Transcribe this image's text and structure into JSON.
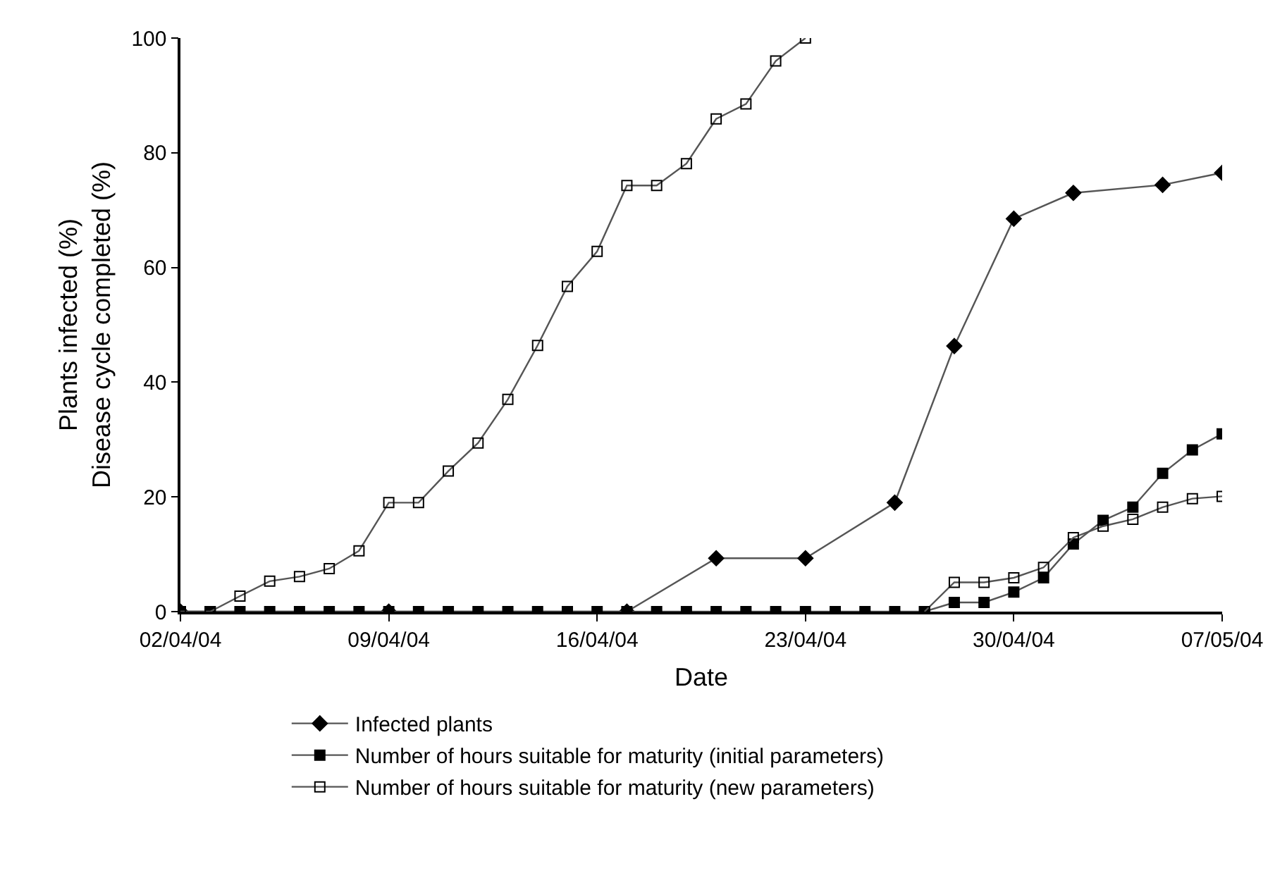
{
  "chart_data": {
    "type": "line",
    "xlabel": "Date",
    "ylabel": "Plants infected (%)\nDisease cycle completed (%)",
    "xlim": [
      "--04-02",
      "--05-07"
    ],
    "xticks": [
      {
        "value": "--04-02",
        "label": "02/04/04"
      },
      {
        "value": "--04-09",
        "label": "09/04/04"
      },
      {
        "value": "--04-16",
        "label": "16/04/04"
      },
      {
        "value": "--04-23",
        "label": "23/04/04"
      },
      {
        "value": "--04-30",
        "label": "30/04/04"
      },
      {
        "value": "--05-07",
        "label": "07/05/04"
      }
    ],
    "ylim": [
      0,
      100
    ],
    "yticks": [
      0,
      20,
      40,
      60,
      80,
      100
    ],
    "grid": false,
    "legend": "bottom",
    "line_style": "solid",
    "series": [
      {
        "name": "Infected plants",
        "color": "#000000",
        "marker": "diamond",
        "x": [
          "--04-02",
          "--04-09",
          "--04-17",
          "--04-20",
          "--04-23",
          "--04-26",
          "--04-28",
          "--04-30",
          "--05-02",
          "--05-05",
          "--05-07"
        ],
        "values": [
          0,
          0,
          0,
          9.3,
          9.3,
          19,
          46.3,
          68.5,
          73,
          74.4,
          76.5
        ]
      },
      {
        "name": "Number of hours suitable for maturity (initial parameters)",
        "color": "#000000",
        "marker": "square",
        "x": [
          "--04-02",
          "--04-03",
          "--04-04",
          "--04-05",
          "--04-06",
          "--04-07",
          "--04-08",
          "--04-09",
          "--04-10",
          "--04-11",
          "--04-12",
          "--04-13",
          "--04-14",
          "--04-15",
          "--04-16",
          "--04-17",
          "--04-18",
          "--04-19",
          "--04-20",
          "--04-21",
          "--04-22",
          "--04-23",
          "--04-24",
          "--04-25",
          "--04-26",
          "--04-27",
          "--04-28",
          "--04-29",
          "--04-30",
          "--05-01",
          "--05-02",
          "--05-03",
          "--05-04",
          "--05-05",
          "--05-06",
          "--05-07"
        ],
        "values": [
          0,
          0,
          0,
          0,
          0,
          0,
          0,
          0,
          0,
          0,
          0,
          0,
          0,
          0,
          0,
          0,
          0,
          0,
          0,
          0,
          0,
          0,
          0,
          0,
          0,
          0,
          1.6,
          1.6,
          3.4,
          5.9,
          11.8,
          15.9,
          18.2,
          24.1,
          28.2,
          31
        ]
      },
      {
        "name": "Number of hours suitable for maturity (new parameters)",
        "color": "#000000",
        "marker": "square-open",
        "x": [
          "--04-02",
          "--04-03",
          "--04-04",
          "--04-05",
          "--04-06",
          "--04-07",
          "--04-08",
          "--04-09",
          "--04-10",
          "--04-11",
          "--04-12",
          "--04-13",
          "--04-14",
          "--04-15",
          "--04-16",
          "--04-17",
          "--04-18",
          "--04-19",
          "--04-20",
          "--04-21",
          "--04-22",
          "--04-23",
          "--04-24",
          "--04-25",
          "--04-26",
          "--04-27",
          "--04-28",
          "--04-29",
          "--04-30",
          "--05-01",
          "--05-02",
          "--05-03",
          "--05-04",
          "--05-05",
          "--05-06",
          "--05-07"
        ],
        "values": [
          0,
          0,
          2.7,
          5.3,
          6.1,
          7.5,
          10.6,
          19,
          19,
          24.5,
          29.4,
          37,
          46.4,
          56.7,
          62.8,
          74.3,
          74.3,
          78.1,
          85.9,
          88.5,
          96,
          100,
          null,
          null,
          null,
          0,
          5.1,
          5.1,
          5.9,
          7.7,
          12.9,
          14.9,
          16.1,
          18.2,
          19.7,
          20.1
        ]
      }
    ]
  }
}
